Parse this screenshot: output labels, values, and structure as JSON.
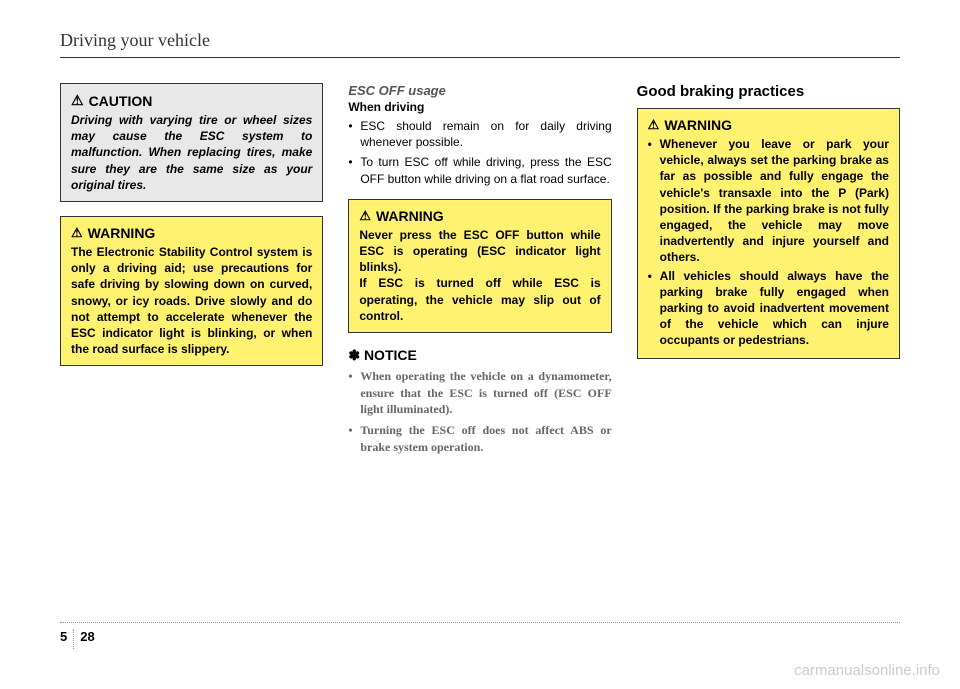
{
  "header": "Driving your vehicle",
  "col1": {
    "caution": {
      "title": "CAUTION",
      "body": "Driving with varying tire or wheel sizes may cause the ESC system to malfunction. When replacing tires, make sure they are the same size as your original tires."
    },
    "warning": {
      "title": "WARNING",
      "body": "The Electronic Stability Control system is only a driving aid; use precautions for safe driving by slowing down on curved, snowy, or icy roads. Drive slowly and do not attempt to accelerate whenever the ESC indicator light is blinking, or when the road surface is slippery."
    }
  },
  "col2": {
    "esc_heading": "ESC OFF usage",
    "when_driving": "When driving",
    "bullets": [
      "ESC should remain on for daily driving whenever possible.",
      "To turn ESC off while driving, press the ESC OFF button while driving on a flat road surface."
    ],
    "warning": {
      "title": "WARNING",
      "body1": "Never press the ESC OFF button while ESC is operating (ESC indicator light blinks).",
      "body2": "If ESC is turned off while ESC is operating, the vehicle may slip out of control."
    },
    "notice_title": "✽ NOTICE",
    "notice_bullets": [
      "When operating the vehicle on a dynamometer, ensure that the ESC is turned off (ESC OFF light illuminated).",
      "Turning the ESC off does not affect ABS or brake system operation."
    ]
  },
  "col3": {
    "heading": "Good braking practices",
    "warning": {
      "title": "WARNING",
      "bullets": [
        "Whenever you leave or park your vehicle, always set the parking brake as far as possible and fully engage the vehicle's transaxle into the P (Park) position. If the parking brake is not fully engaged, the vehicle may move inadvertently and injure yourself and others.",
        "All vehicles should always have the parking brake fully engaged when parking to avoid inadvertent movement of the vehicle which can injure occupants or pedestrians."
      ]
    }
  },
  "footer": {
    "section": "5",
    "page": "28"
  },
  "watermark": "carmanualsonline.info",
  "colors": {
    "caution_bg": "#e8e8e8",
    "warning_bg": "#fff270",
    "border": "#333333",
    "watermark": "#cccccc"
  }
}
